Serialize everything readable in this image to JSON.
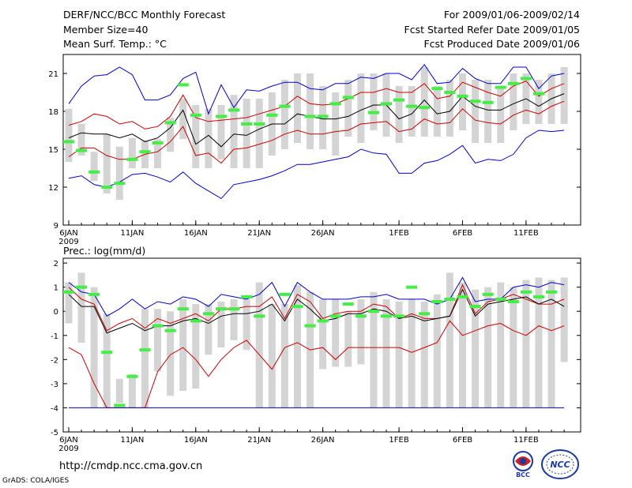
{
  "header": {
    "title": "DERF/NCC/BCC Monthly Forecast",
    "member_size": "Member Size=40",
    "variable": "Mean Surf. Temp.: °C",
    "forecast_period": "For 2009/01/06-2009/02/14",
    "started_refer": "Fcst Started Refer Date 2009/01/05",
    "produced": "Fcst Produced Date 2009/01/06"
  },
  "footer": {
    "url": "http://cmdp.ncc.cma.gov.cn",
    "credit": "GrADS: COLA/IGES",
    "logo_bcc": "BCC",
    "logo_ncc": "NCC"
  },
  "chart_data": [
    {
      "type": "line",
      "title": "Mean Surf. Temp.: °C",
      "ylim": [
        9,
        22.5
      ],
      "yticks": [
        9,
        12,
        15,
        18,
        21
      ],
      "x_tick_labels": [
        "6JAN",
        "11JAN",
        "16JAN",
        "21JAN",
        "26JAN",
        "1FEB",
        "6FEB",
        "11FEB"
      ],
      "x_tick_days": [
        1,
        6,
        11,
        16,
        21,
        27,
        32,
        37
      ],
      "x_year_label": "2009",
      "days": [
        1,
        2,
        3,
        4,
        5,
        6,
        7,
        8,
        9,
        10,
        11,
        12,
        13,
        14,
        15,
        16,
        17,
        18,
        19,
        20,
        21,
        22,
        23,
        24,
        25,
        26,
        27,
        28,
        29,
        30,
        31,
        32,
        33,
        34,
        35,
        36,
        37,
        38,
        39,
        40
      ],
      "series": [
        {
          "name": "max",
          "color": "#0000cc",
          "values": [
            18.6,
            20.0,
            20.8,
            20.9,
            21.5,
            20.9,
            18.9,
            18.9,
            19.3,
            20.6,
            21.1,
            17.8,
            20.1,
            18.3,
            19.7,
            19.6,
            20.0,
            20.3,
            20.3,
            19.8,
            19.7,
            20.2,
            20.2,
            20.7,
            20.6,
            21.0,
            21.0,
            20.5,
            21.7,
            20.2,
            20.3,
            21.4,
            20.6,
            20.2,
            20.2,
            21.5,
            21.5,
            19.8,
            20.8,
            21.0
          ]
        },
        {
          "name": "upper",
          "color": "#cc0000",
          "values": [
            16.9,
            17.2,
            17.8,
            17.6,
            17.0,
            17.2,
            16.6,
            16.8,
            17.6,
            19.3,
            17.5,
            17.2,
            17.3,
            17.4,
            17.5,
            17.8,
            18.1,
            18.4,
            19.2,
            18.6,
            18.5,
            18.6,
            19.0,
            19.5,
            19.5,
            19.8,
            19.5,
            19.5,
            20.2,
            19.0,
            19.2,
            20.3,
            19.9,
            19.5,
            19.2,
            20.0,
            20.4,
            19.2,
            19.8,
            20.2
          ]
        },
        {
          "name": "mean",
          "color": "#000000",
          "values": [
            15.9,
            16.3,
            16.2,
            16.2,
            15.9,
            16.2,
            15.6,
            15.9,
            16.7,
            18.1,
            15.4,
            16.1,
            15.2,
            16.2,
            16.1,
            16.6,
            17.0,
            17.0,
            17.8,
            17.6,
            17.4,
            17.4,
            17.6,
            18.1,
            18.5,
            18.5,
            17.4,
            17.8,
            18.9,
            17.8,
            18.0,
            19.2,
            18.4,
            18.1,
            18.1,
            18.6,
            19.0,
            18.4,
            19.0,
            19.4
          ]
        },
        {
          "name": "lower",
          "color": "#cc0000",
          "values": [
            14.4,
            15.1,
            15.1,
            14.5,
            14.2,
            14.2,
            14.6,
            14.8,
            15.6,
            16.8,
            14.5,
            14.7,
            13.9,
            15.0,
            15.1,
            15.4,
            15.7,
            16.2,
            16.5,
            16.2,
            16.2,
            16.4,
            16.5,
            17.0,
            17.1,
            17.2,
            16.4,
            16.6,
            17.4,
            17.0,
            17.1,
            18.2,
            17.3,
            17.1,
            17.0,
            17.7,
            18.1,
            17.8,
            18.4,
            18.8
          ]
        },
        {
          "name": "min",
          "color": "#0000cc",
          "values": [
            12.7,
            12.9,
            12.2,
            12.0,
            12.4,
            13.0,
            13.1,
            12.8,
            12.4,
            13.2,
            12.3,
            11.7,
            11.1,
            12.2,
            12.4,
            12.6,
            12.9,
            13.3,
            13.8,
            13.8,
            14.0,
            14.2,
            14.4,
            15.0,
            14.7,
            14.6,
            13.1,
            13.1,
            13.9,
            14.1,
            14.6,
            15.3,
            13.9,
            14.2,
            14.1,
            14.6,
            15.9,
            16.5,
            16.4,
            16.5
          ]
        }
      ],
      "bars": [
        {
          "low": 14.0,
          "high": 18.2
        },
        {
          "low": 14.5,
          "high": 17.0
        },
        {
          "low": 12.5,
          "high": 14.8
        },
        {
          "low": 11.5,
          "high": 16.2
        },
        {
          "low": 11.0,
          "high": 15.2
        },
        {
          "low": 13.5,
          "high": 15.9
        },
        {
          "low": 13.5,
          "high": 15.7
        },
        {
          "low": 13.5,
          "high": 15.8
        },
        {
          "low": 14.8,
          "high": 17.5
        },
        {
          "low": 15.8,
          "high": 19.0
        },
        {
          "low": 13.5,
          "high": 18.5
        },
        {
          "low": 13.5,
          "high": 18.2
        },
        {
          "low": 14.2,
          "high": 18.5
        },
        {
          "low": 13.5,
          "high": 19.3
        },
        {
          "low": 13.5,
          "high": 19.0
        },
        {
          "low": 13.5,
          "high": 19.0
        },
        {
          "low": 14.5,
          "high": 19.5
        },
        {
          "low": 15.0,
          "high": 20.5
        },
        {
          "low": 15.5,
          "high": 21.0
        },
        {
          "low": 15.0,
          "high": 21.0
        },
        {
          "low": 15.0,
          "high": 20.0
        },
        {
          "low": 14.5,
          "high": 19.5
        },
        {
          "low": 16.0,
          "high": 20.5
        },
        {
          "low": 15.5,
          "high": 21.0
        },
        {
          "low": 16.5,
          "high": 21.0
        },
        {
          "low": 16.0,
          "high": 21.0
        },
        {
          "low": 15.5,
          "high": 20.0
        },
        {
          "low": 16.0,
          "high": 20.0
        },
        {
          "low": 16.0,
          "high": 21.5
        },
        {
          "low": 16.0,
          "high": 20.0
        },
        {
          "low": 16.0,
          "high": 20.5
        },
        {
          "low": 16.5,
          "high": 21.0
        },
        {
          "low": 15.5,
          "high": 20.5
        },
        {
          "low": 15.5,
          "high": 20.5
        },
        {
          "low": 15.5,
          "high": 20.0
        },
        {
          "low": 16.5,
          "high": 21.0
        },
        {
          "low": 17.0,
          "high": 21.0
        },
        {
          "low": 17.0,
          "high": 20.5
        },
        {
          "low": 17.0,
          "high": 21.0
        },
        {
          "low": 17.0,
          "high": 21.5
        }
      ],
      "observed": [
        15.6,
        14.9,
        13.2,
        12.0,
        12.3,
        14.2,
        14.8,
        15.5,
        17.1,
        20.1,
        17.7,
        null,
        17.6,
        18.1,
        17.0,
        17.0,
        17.7,
        18.4,
        null,
        17.6,
        17.6,
        18.6,
        19.1,
        null,
        17.9,
        18.6,
        18.9,
        18.4,
        18.3,
        19.8,
        19.5,
        19.2,
        18.8,
        18.7,
        19.9,
        20.2,
        20.6,
        19.4,
        null,
        null
      ]
    },
    {
      "type": "line",
      "title": "Prec.: log(mm/d)",
      "ylim": [
        -5,
        2.2
      ],
      "yticks": [
        -5,
        -4,
        -3,
        -2,
        -1,
        0,
        1,
        2
      ],
      "x_tick_labels": [
        "6JAN",
        "11JAN",
        "16JAN",
        "21JAN",
        "26JAN",
        "1FEB",
        "6FEB",
        "11FEB"
      ],
      "x_tick_days": [
        1,
        6,
        11,
        16,
        21,
        27,
        32,
        37
      ],
      "x_year_label": "2009",
      "baseline": -4,
      "days": [
        1,
        2,
        3,
        4,
        5,
        6,
        7,
        8,
        9,
        10,
        11,
        12,
        13,
        14,
        15,
        16,
        17,
        18,
        19,
        20,
        21,
        22,
        23,
        24,
        25,
        26,
        27,
        28,
        29,
        30,
        31,
        32,
        33,
        34,
        35,
        36,
        37,
        38,
        39,
        40
      ],
      "series": [
        {
          "name": "max",
          "color": "#0000cc",
          "values": [
            1.2,
            0.8,
            0.7,
            -0.2,
            0.1,
            0.5,
            0.1,
            0.4,
            0.3,
            0.6,
            0.5,
            0.2,
            0.7,
            0.6,
            0.5,
            0.7,
            1.2,
            0.2,
            1.2,
            0.8,
            0.5,
            0.5,
            0.5,
            0.6,
            0.6,
            0.7,
            0.5,
            0.5,
            0.5,
            0.3,
            0.5,
            1.4,
            0.4,
            0.5,
            0.5,
            1.0,
            1.1,
            1.0,
            1.2,
            1.1
          ]
        },
        {
          "name": "upper",
          "color": "#cc0000",
          "values": [
            1.0,
            0.5,
            0.3,
            -0.8,
            -0.5,
            -0.3,
            -0.7,
            -0.3,
            -0.5,
            -0.3,
            -0.1,
            -0.4,
            0.1,
            0.1,
            0.2,
            0.2,
            0.6,
            -0.3,
            0.7,
            0.4,
            -0.3,
            -0.1,
            0.0,
            0.0,
            0.3,
            0.2,
            -0.3,
            -0.1,
            -0.3,
            -0.3,
            -0.2,
            1.1,
            -0.1,
            0.4,
            0.5,
            0.7,
            0.5,
            0.3,
            0.3,
            0.5
          ]
        },
        {
          "name": "mean",
          "color": "#000000",
          "values": [
            0.7,
            0.2,
            0.2,
            -0.9,
            -0.7,
            -0.5,
            -0.8,
            -0.6,
            -0.6,
            -0.4,
            -0.3,
            -0.5,
            -0.2,
            -0.1,
            -0.1,
            0.0,
            0.3,
            -0.4,
            0.5,
            0.1,
            -0.4,
            -0.3,
            -0.1,
            -0.1,
            0.1,
            0.0,
            -0.3,
            -0.2,
            -0.4,
            -0.3,
            -0.2,
            0.9,
            -0.2,
            0.3,
            0.4,
            0.5,
            0.6,
            0.3,
            0.5,
            0.2
          ]
        },
        {
          "name": "lower",
          "color": "#cc0000",
          "values": [
            -1.5,
            -1.8,
            -3.0,
            -4.0,
            -4.0,
            -4.0,
            -4.0,
            -2.5,
            -1.8,
            -1.5,
            -2.0,
            -2.7,
            -2.0,
            -1.5,
            -1.2,
            -1.8,
            -2.4,
            -1.5,
            -1.3,
            -1.6,
            -1.5,
            -2.0,
            -1.5,
            -1.5,
            -1.5,
            -1.5,
            -1.5,
            -1.7,
            -1.5,
            -1.3,
            -0.4,
            -1.0,
            -0.8,
            -0.6,
            -0.5,
            -0.8,
            -1.0,
            -0.6,
            -0.8,
            -0.6
          ]
        },
        {
          "name": "min",
          "color": "#0000cc",
          "values": [
            -4,
            -4,
            -4,
            -4,
            -4,
            -4,
            -4,
            -4,
            -4,
            -4,
            -4,
            -4,
            -4,
            -4,
            -4,
            -4,
            -4,
            -4,
            -4,
            -4,
            -4,
            -4,
            -4,
            -4,
            -4,
            -4,
            -4,
            -4,
            -4,
            -4,
            -4,
            -4,
            -4,
            -4,
            -4,
            -4,
            -4,
            -4,
            -4,
            -4
          ]
        }
      ],
      "bars": [
        {
          "low": -0.5,
          "high": 1.2
        },
        {
          "low": -1.3,
          "high": 1.6
        },
        {
          "low": -4.0,
          "high": 1.0
        },
        {
          "low": -4.0,
          "high": -0.1
        },
        {
          "low": -3.8,
          "high": -2.8
        },
        {
          "low": -4.0,
          "high": -2.6
        },
        {
          "low": -4.0,
          "high": 0.1
        },
        {
          "low": -2.5,
          "high": 0.1
        },
        {
          "low": -3.5,
          "high": 0.0
        },
        {
          "low": -3.3,
          "high": 0.5
        },
        {
          "low": -3.2,
          "high": 0.3
        },
        {
          "low": -1.8,
          "high": 0.3
        },
        {
          "low": -1.5,
          "high": 0.4
        },
        {
          "low": -1.2,
          "high": 0.5
        },
        {
          "low": -1.6,
          "high": 0.5
        },
        {
          "low": -4.0,
          "high": 1.2
        },
        {
          "low": -4.0,
          "high": 0.3
        },
        {
          "low": -4.0,
          "high": 0.3
        },
        {
          "low": -4.0,
          "high": 1.1
        },
        {
          "low": -4.0,
          "high": 0.8
        },
        {
          "low": -2.4,
          "high": 0.5
        },
        {
          "low": -2.3,
          "high": 0.5
        },
        {
          "low": -2.3,
          "high": 0.0
        },
        {
          "low": -2.2,
          "high": 0.5
        },
        {
          "low": -4.0,
          "high": 0.8
        },
        {
          "low": -4.0,
          "high": 0.5
        },
        {
          "low": -4.0,
          "high": 0.4
        },
        {
          "low": -4.0,
          "high": 0.5
        },
        {
          "low": -4.0,
          "high": 0.4
        },
        {
          "low": -4.0,
          "high": 0.7
        },
        {
          "low": -4.0,
          "high": 1.6
        },
        {
          "low": -4.0,
          "high": 1.2
        },
        {
          "low": -4.0,
          "high": 0.9
        },
        {
          "low": -4.0,
          "high": 1.0
        },
        {
          "low": -4.0,
          "high": 1.2
        },
        {
          "low": -4.0,
          "high": 1.0
        },
        {
          "low": -4.0,
          "high": 1.3
        },
        {
          "low": -4.0,
          "high": 1.4
        },
        {
          "low": -4.0,
          "high": 1.3
        },
        {
          "low": -2.1,
          "high": 1.4
        }
      ],
      "observed": [
        0.8,
        1.0,
        0.7,
        -1.7,
        -3.9,
        -2.7,
        -1.6,
        -0.6,
        -0.8,
        0.1,
        -0.4,
        -0.1,
        0.1,
        0.1,
        0.6,
        -0.2,
        null,
        0.7,
        0.2,
        -0.6,
        -0.4,
        -0.2,
        0.3,
        -0.2,
        0.0,
        -0.2,
        -0.2,
        1.0,
        -0.1,
        0.4,
        0.5,
        0.6,
        0.2,
        0.7,
        0.5,
        0.4,
        0.8,
        0.6,
        0.8,
        null
      ]
    }
  ]
}
